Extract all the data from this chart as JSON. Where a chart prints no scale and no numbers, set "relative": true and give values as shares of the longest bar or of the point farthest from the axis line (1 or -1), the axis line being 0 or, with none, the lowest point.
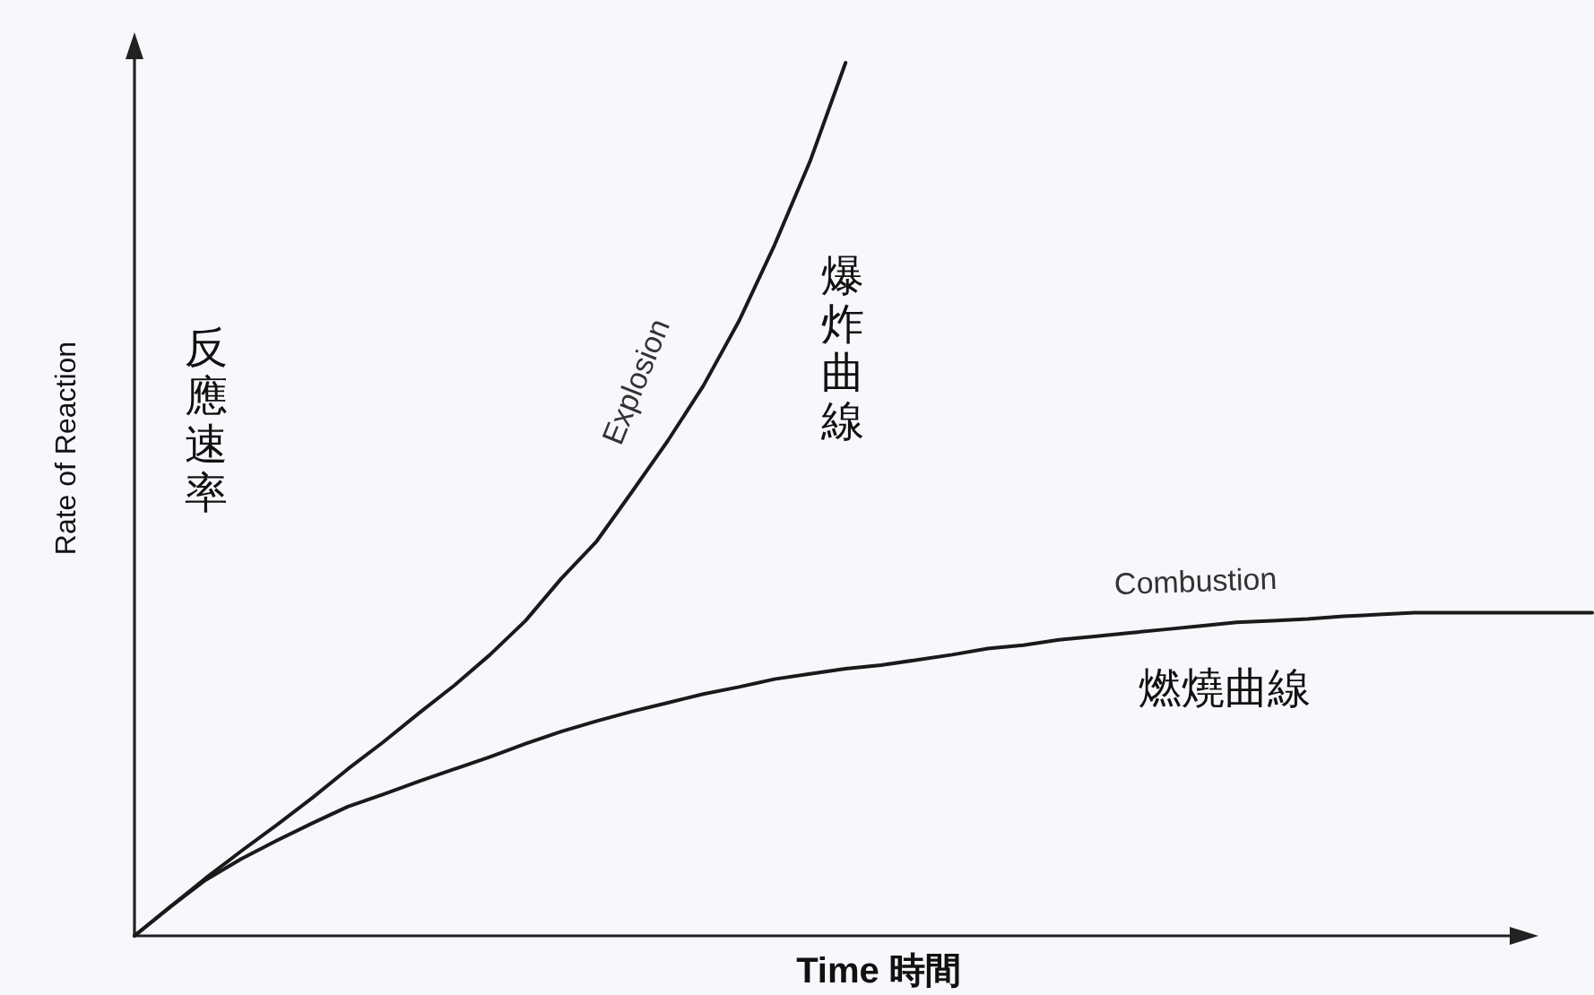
{
  "chart_data": {
    "type": "line",
    "relative": true,
    "xlabel": "Time 時間",
    "ylabel": "Rate of Reaction",
    "annotations": [
      "反應速率",
      "爆炸曲線",
      "燃燒曲線"
    ],
    "categories": [
      null,
      null,
      null,
      null,
      null,
      null,
      null,
      null,
      null,
      null,
      null,
      null,
      null,
      null,
      null,
      null,
      null,
      null,
      null,
      null,
      null,
      null,
      null,
      null,
      null,
      null,
      null,
      null,
      null,
      null,
      null,
      null,
      null,
      null,
      null,
      null,
      null,
      null,
      null,
      null,
      null,
      null
    ],
    "series": [
      {
        "name": "Explosion",
        "color": "#1a1a1a",
        "values": [
          0,
          0.033,
          0.066,
          0.097,
          0.127,
          0.158,
          0.191,
          0.222,
          0.255,
          0.287,
          0.322,
          0.361,
          0.409,
          0.452,
          0.509,
          0.567,
          0.63,
          0.704,
          0.791,
          0.887,
          1.0,
          null,
          null,
          null,
          null,
          null,
          null,
          null,
          null,
          null,
          null,
          null,
          null,
          null,
          null,
          null,
          null,
          null,
          null,
          null,
          null,
          null
        ]
      },
      {
        "name": "Combustion",
        "color": "#1a1a1a",
        "values": [
          0,
          0.033,
          0.064,
          0.088,
          0.109,
          0.129,
          0.148,
          0.162,
          0.177,
          0.191,
          0.205,
          0.22,
          0.234,
          0.246,
          0.257,
          0.267,
          0.277,
          0.285,
          0.294,
          0.3,
          0.306,
          0.31,
          0.316,
          0.322,
          0.329,
          0.333,
          0.339,
          0.343,
          0.347,
          0.351,
          0.355,
          0.359,
          0.361,
          0.363,
          0.366,
          0.368,
          0.37,
          0.37,
          0.37,
          0.37,
          0.37,
          0.37
        ]
      }
    ]
  }
}
